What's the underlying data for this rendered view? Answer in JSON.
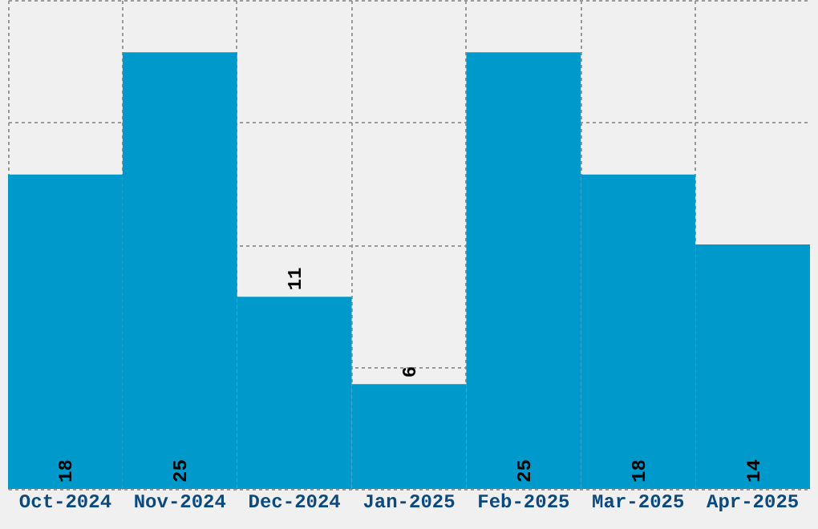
{
  "chart_data": {
    "type": "bar",
    "categories": [
      "Oct-2024",
      "Nov-2024",
      "Dec-2024",
      "Jan-2025",
      "Feb-2025",
      "Mar-2025",
      "Apr-2025"
    ],
    "values": [
      18,
      25,
      11,
      6,
      25,
      18,
      14
    ],
    "color": "#0099cc",
    "ylim": [
      0,
      28
    ],
    "yticks": [
      {
        "value": 0,
        "label": null
      },
      {
        "value": 7,
        "label": null
      },
      {
        "value": 14,
        "label": null
      },
      {
        "value": 21,
        "label": null
      },
      {
        "value": 28,
        "label": null
      }
    ],
    "grid": true,
    "data_labels": true,
    "tick_labels": "x"
  }
}
